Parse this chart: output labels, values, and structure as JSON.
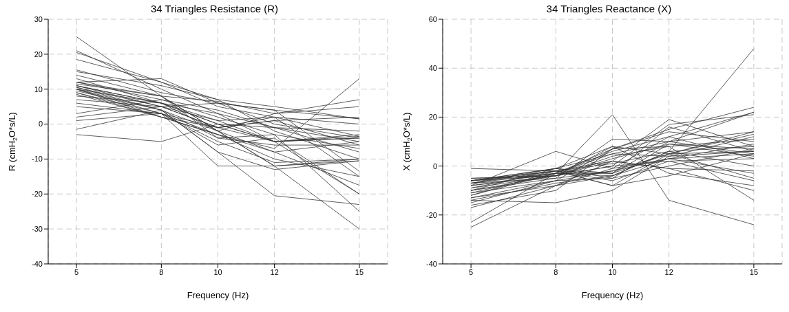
{
  "chart_data": [
    {
      "type": "line",
      "title": "34 Triangles Resistance (R)",
      "xlabel": "Frequency (Hz)",
      "ylabel": "R (cmH$_{2}$O*s/L)",
      "x": [
        5,
        8,
        10,
        12,
        15
      ],
      "xlim": [
        4,
        16
      ],
      "xticks": [
        5,
        8,
        10,
        12,
        15
      ],
      "ylim": [
        -40,
        30
      ],
      "yticks": [
        -40,
        -30,
        -20,
        -10,
        0,
        10,
        20,
        30
      ],
      "grid": true,
      "marker": "none",
      "line_style": "solid",
      "series": [
        {
          "color": "#333333",
          "values": [
            25,
            8,
            -2,
            -12,
            -30
          ]
        },
        {
          "color": "#333333",
          "values": [
            21,
            10,
            3,
            -5,
            -20
          ]
        },
        {
          "color": "#333333",
          "values": [
            20.5,
            12,
            5,
            2,
            -15
          ]
        },
        {
          "color": "#333333",
          "values": [
            18.5,
            12,
            7,
            -2,
            -10
          ]
        },
        {
          "color": "#333333",
          "values": [
            15.5,
            9,
            6,
            0,
            -4
          ]
        },
        {
          "color": "#333333",
          "values": [
            15,
            11,
            7,
            5,
            1.5
          ]
        },
        {
          "color": "#333333",
          "values": [
            12,
            13,
            6,
            4,
            -13.5
          ]
        },
        {
          "color": "#333333",
          "values": [
            11.5,
            8,
            6.5,
            3,
            5
          ]
        },
        {
          "color": "#333333",
          "values": [
            11,
            6,
            1,
            -5,
            -4
          ]
        },
        {
          "color": "#333333",
          "values": [
            10.5,
            5,
            -1,
            1,
            2
          ]
        },
        {
          "color": "#333333",
          "values": [
            10.5,
            4,
            -2,
            -12,
            -10.5
          ]
        },
        {
          "color": "#333333",
          "values": [
            10,
            3,
            -12,
            -12,
            -10
          ]
        },
        {
          "color": "#333333",
          "values": [
            10,
            6,
            0,
            -5,
            -3.5
          ]
        },
        {
          "color": "#333333",
          "values": [
            9.5,
            4,
            -8,
            -20.5,
            -23
          ]
        },
        {
          "color": "#333333",
          "values": [
            9,
            2,
            -3,
            -8,
            -17.5
          ]
        },
        {
          "color": "#333333",
          "values": [
            8,
            6,
            3,
            -1,
            -2
          ]
        },
        {
          "color": "#333333",
          "values": [
            7,
            5,
            -1,
            1,
            -6
          ]
        },
        {
          "color": "#333333",
          "values": [
            5,
            3,
            -3,
            -7,
            13
          ]
        },
        {
          "color": "#333333",
          "values": [
            3,
            7,
            4,
            -1,
            -5
          ]
        },
        {
          "color": "#333333",
          "values": [
            2,
            5,
            6,
            4,
            1.5
          ]
        },
        {
          "color": "#333333",
          "values": [
            1,
            3,
            -5,
            -11,
            -10
          ]
        },
        {
          "color": "#333333",
          "values": [
            -1.5,
            4,
            -4,
            -3,
            -7
          ]
        },
        {
          "color": "#333333",
          "values": [
            -3,
            -5,
            0,
            -5,
            -4
          ]
        },
        {
          "color": "#333333",
          "values": [
            12,
            7,
            2,
            -3,
            -25
          ]
        },
        {
          "color": "#333333",
          "values": [
            11,
            5,
            1,
            2,
            0
          ]
        },
        {
          "color": "#333333",
          "values": [
            10,
            4,
            -8,
            -13,
            -10.5
          ]
        },
        {
          "color": "#333333",
          "values": [
            14,
            8,
            -4,
            -6,
            -6
          ]
        },
        {
          "color": "#333333",
          "values": [
            9,
            3,
            -1,
            -5,
            -3
          ]
        },
        {
          "color": "#333333",
          "values": [
            11,
            6,
            -2,
            3,
            7
          ]
        },
        {
          "color": "#333333",
          "values": [
            13,
            6,
            0,
            -1,
            -8
          ]
        },
        {
          "color": "#333333",
          "values": [
            8.5,
            2,
            -3,
            -10,
            -15
          ]
        },
        {
          "color": "#333333",
          "values": [
            10,
            2,
            -1,
            2,
            -3.5
          ]
        },
        {
          "color": "#333333",
          "values": [
            6,
            3,
            -6,
            -4,
            -20
          ]
        },
        {
          "color": "#333333",
          "values": [
            12,
            8,
            -2,
            -8,
            -5
          ]
        }
      ]
    },
    {
      "type": "line",
      "title": "34 Triangles Reactance (X)",
      "xlabel": "Frequency (Hz)",
      "ylabel": "X (cmH$_{2}$O*s/L)",
      "x": [
        5,
        8,
        10,
        12,
        15
      ],
      "xlim": [
        4,
        16
      ],
      "xticks": [
        5,
        8,
        10,
        12,
        15
      ],
      "ylim": [
        -40,
        60
      ],
      "yticks": [
        -40,
        -20,
        0,
        20,
        40,
        60
      ],
      "grid": true,
      "marker": "none",
      "line_style": "solid",
      "series": [
        {
          "color": "#333333",
          "values": [
            -25,
            -8,
            -4,
            6,
            48
          ]
        },
        {
          "color": "#333333",
          "values": [
            -23,
            -3,
            21,
            -14,
            -24
          ]
        },
        {
          "color": "#333333",
          "values": [
            -1,
            -2,
            -3,
            5,
            -5
          ]
        },
        {
          "color": "#333333",
          "values": [
            -6,
            -2,
            2,
            19,
            8
          ]
        },
        {
          "color": "#333333",
          "values": [
            -6,
            -1,
            5,
            10,
            22
          ]
        },
        {
          "color": "#333333",
          "values": [
            -6,
            -3,
            7,
            15,
            24
          ]
        },
        {
          "color": "#333333",
          "values": [
            -7,
            -3,
            -3,
            16,
            6
          ]
        },
        {
          "color": "#333333",
          "values": [
            -7,
            -5,
            11,
            10,
            5
          ]
        },
        {
          "color": "#333333",
          "values": [
            -6,
            -4,
            8,
            -3,
            -8
          ]
        },
        {
          "color": "#333333",
          "values": [
            -8,
            6,
            -1,
            12,
            3
          ]
        },
        {
          "color": "#333333",
          "values": [
            -9,
            -2,
            -8,
            5,
            14
          ]
        },
        {
          "color": "#333333",
          "values": [
            -10,
            -4,
            0,
            17,
            21
          ]
        },
        {
          "color": "#333333",
          "values": [
            -11,
            -6,
            7,
            14,
            10
          ]
        },
        {
          "color": "#333333",
          "values": [
            -12,
            -3,
            -4,
            3,
            -3
          ]
        },
        {
          "color": "#333333",
          "values": [
            -13,
            -6,
            -2,
            5,
            13
          ]
        },
        {
          "color": "#333333",
          "values": [
            -14,
            -15,
            -10,
            4,
            12
          ]
        },
        {
          "color": "#333333",
          "values": [
            -15,
            -6,
            -5,
            0,
            7
          ]
        },
        {
          "color": "#333333",
          "values": [
            -16,
            -10,
            7,
            8,
            -14
          ]
        },
        {
          "color": "#333333",
          "values": [
            -17,
            -8,
            2,
            -1,
            -2
          ]
        },
        {
          "color": "#333333",
          "values": [
            -6,
            -1,
            8,
            5,
            6
          ]
        },
        {
          "color": "#333333",
          "values": [
            -5,
            -4,
            3,
            9,
            4
          ]
        },
        {
          "color": "#333333",
          "values": [
            -7,
            -2,
            1,
            6,
            0
          ]
        },
        {
          "color": "#333333",
          "values": [
            -8,
            -3,
            6,
            12,
            22
          ]
        },
        {
          "color": "#333333",
          "values": [
            -10,
            -5,
            -2,
            3,
            9
          ]
        },
        {
          "color": "#333333",
          "values": [
            -12,
            -2,
            -8,
            -4,
            5
          ]
        },
        {
          "color": "#333333",
          "values": [
            -9,
            -4,
            4,
            8,
            11
          ]
        },
        {
          "color": "#333333",
          "values": [
            -6,
            -2,
            -6,
            2,
            3
          ]
        },
        {
          "color": "#333333",
          "values": [
            -14,
            -7,
            -4,
            6,
            8
          ]
        },
        {
          "color": "#333333",
          "values": [
            -11,
            -3,
            5,
            4,
            6
          ]
        },
        {
          "color": "#333333",
          "values": [
            -7,
            -1,
            -3,
            10,
            14
          ]
        },
        {
          "color": "#333333",
          "values": [
            -5,
            -4,
            0,
            2,
            -6
          ]
        },
        {
          "color": "#333333",
          "values": [
            -13,
            -8,
            -1,
            3,
            5
          ]
        },
        {
          "color": "#333333",
          "values": [
            -8,
            -4,
            2,
            -1,
            -10
          ]
        },
        {
          "color": "#333333",
          "values": [
            -10,
            -1,
            -5,
            9,
            7
          ]
        }
      ]
    }
  ]
}
